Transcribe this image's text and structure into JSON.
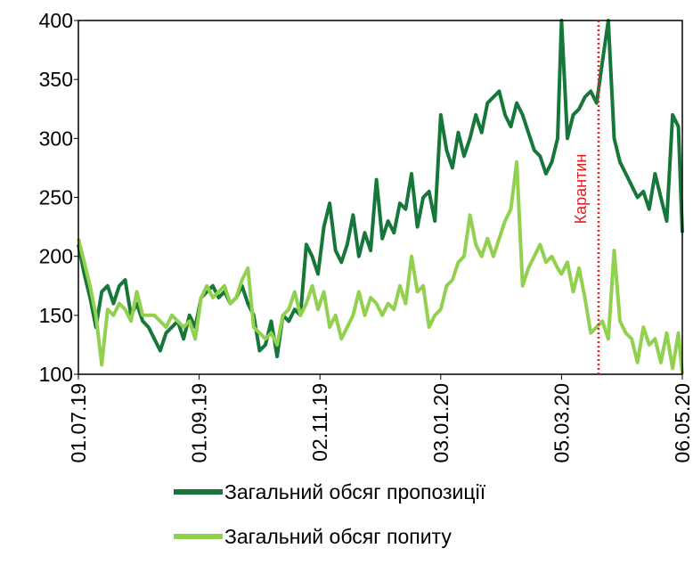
{
  "chart_data": {
    "type": "line",
    "x": [
      "01.07.19",
      "04.07.19",
      "07.07.19",
      "10.07.19",
      "13.07.19",
      "16.07.19",
      "19.07.19",
      "22.07.19",
      "25.07.19",
      "28.07.19",
      "31.07.19",
      "03.08.19",
      "06.08.19",
      "09.08.19",
      "12.08.19",
      "15.08.19",
      "18.08.19",
      "21.08.19",
      "24.08.19",
      "27.08.19",
      "30.08.19",
      "02.09.19",
      "05.09.19",
      "08.09.19",
      "11.09.19",
      "14.09.19",
      "17.09.19",
      "20.09.19",
      "23.09.19",
      "26.09.19",
      "29.09.19",
      "02.10.19",
      "05.10.19",
      "08.10.19",
      "11.10.19",
      "14.10.19",
      "17.10.19",
      "20.10.19",
      "23.10.19",
      "26.10.19",
      "29.10.19",
      "01.11.19",
      "04.11.19",
      "07.11.19",
      "10.11.19",
      "13.11.19",
      "16.11.19",
      "19.11.19",
      "22.11.19",
      "25.11.19",
      "28.11.19",
      "01.12.19",
      "04.12.19",
      "07.12.19",
      "10.12.19",
      "13.12.19",
      "16.12.19",
      "19.12.19",
      "22.12.19",
      "25.12.19",
      "28.12.19",
      "31.12.19",
      "03.01.20",
      "06.01.20",
      "09.01.20",
      "12.01.20",
      "15.01.20",
      "18.01.20",
      "21.01.20",
      "24.01.20",
      "27.01.20",
      "30.01.20",
      "02.02.20",
      "05.02.20",
      "08.02.20",
      "11.02.20",
      "14.02.20",
      "17.02.20",
      "20.02.20",
      "23.02.20",
      "26.02.20",
      "29.02.20",
      "03.03.20",
      "05.03.20",
      "08.03.20",
      "11.03.20",
      "14.03.20",
      "17.03.20",
      "20.03.20",
      "23.03.20",
      "26.03.20",
      "29.03.20",
      "01.04.20",
      "04.04.20",
      "07.04.20",
      "10.04.20",
      "13.04.20",
      "16.04.20",
      "19.04.20",
      "22.04.20",
      "25.04.20",
      "28.04.20",
      "01.05.20",
      "04.05.20",
      "06.05.20"
    ],
    "series": [
      {
        "name": "Загальний обсяг пропозиції",
        "color": "#17773a",
        "values": [
          210,
          185,
          165,
          140,
          170,
          175,
          160,
          175,
          180,
          150,
          160,
          145,
          140,
          130,
          120,
          135,
          140,
          145,
          130,
          150,
          140,
          165,
          170,
          175,
          165,
          170,
          160,
          165,
          175,
          160,
          150,
          120,
          125,
          145,
          115,
          150,
          145,
          155,
          150,
          210,
          200,
          185,
          225,
          245,
          205,
          195,
          210,
          235,
          200,
          220,
          205,
          265,
          215,
          230,
          220,
          245,
          240,
          270,
          225,
          250,
          255,
          230,
          320,
          290,
          275,
          305,
          285,
          300,
          320,
          305,
          330,
          335,
          340,
          320,
          310,
          330,
          320,
          305,
          290,
          285,
          270,
          280,
          300,
          400,
          300,
          320,
          325,
          335,
          340,
          330,
          365,
          400,
          300,
          280,
          270,
          260,
          250,
          255,
          240,
          270,
          250,
          230,
          320,
          310,
          220
        ]
      },
      {
        "name": "Загальний обсяг попиту",
        "color": "#92d050",
        "values": [
          215,
          195,
          175,
          150,
          108,
          155,
          150,
          160,
          155,
          145,
          170,
          150,
          150,
          150,
          145,
          140,
          150,
          145,
          140,
          145,
          130,
          165,
          175,
          165,
          170,
          175,
          160,
          165,
          180,
          190,
          140,
          135,
          130,
          135,
          125,
          150,
          155,
          170,
          150,
          160,
          175,
          155,
          170,
          140,
          150,
          130,
          140,
          150,
          170,
          150,
          165,
          160,
          150,
          160,
          155,
          175,
          160,
          200,
          170,
          175,
          140,
          150,
          155,
          175,
          180,
          195,
          200,
          235,
          210,
          200,
          215,
          200,
          215,
          230,
          240,
          280,
          175,
          190,
          200,
          210,
          195,
          200,
          190,
          185,
          195,
          170,
          190,
          165,
          135,
          140,
          145,
          130,
          205,
          145,
          135,
          130,
          110,
          140,
          125,
          130,
          110,
          135,
          105,
          135,
          100
        ]
      }
    ],
    "xlim": [
      "01.07.19",
      "06.05.20"
    ],
    "xticks": [
      "01.07.19",
      "01.09.19",
      "02.11.19",
      "03.01.20",
      "05.03.20",
      "06.05.20"
    ],
    "ylim": [
      100,
      400
    ],
    "yticks": [
      100,
      150,
      200,
      250,
      300,
      350,
      400
    ],
    "annotation": {
      "text": "Карантин",
      "x": "24.03.20",
      "color": "#e02020"
    }
  }
}
